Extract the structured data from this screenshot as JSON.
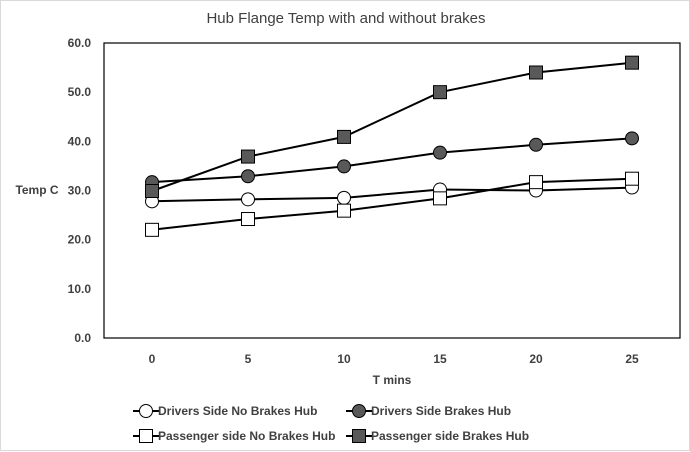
{
  "chart_data": {
    "type": "line",
    "title": "Hub Flange Temp with and without brakes",
    "xlabel": "T mins",
    "ylabel": "Temp C",
    "x": [
      0,
      5,
      10,
      15,
      20,
      25
    ],
    "x_tick_labels": [
      "0",
      "5",
      "10",
      "15",
      "20",
      "25"
    ],
    "ylim": [
      0,
      60
    ],
    "y_ticks": [
      0,
      10,
      20,
      30,
      40,
      50,
      60
    ],
    "y_tick_labels": [
      "0.0",
      "10.0",
      "20.0",
      "30.0",
      "40.0",
      "50.0",
      "60.0"
    ],
    "grid": false,
    "legend_position": "bottom",
    "series": [
      {
        "name": "Drivers Side No Brakes Hub",
        "marker": "circle",
        "fill": "#ffffff",
        "values": [
          27.8,
          28.2,
          28.5,
          30.2,
          30.0,
          30.6
        ]
      },
      {
        "name": "Drivers Side Brakes Hub",
        "marker": "circle",
        "fill": "#595959",
        "values": [
          31.7,
          32.9,
          34.9,
          37.7,
          39.3,
          40.6
        ]
      },
      {
        "name": "Passenger side No Brakes Hub",
        "marker": "square",
        "fill": "#ffffff",
        "values": [
          22.0,
          24.2,
          25.9,
          28.4,
          31.7,
          32.4
        ]
      },
      {
        "name": "Passenger side Brakes Hub",
        "marker": "square",
        "fill": "#595959",
        "values": [
          29.9,
          36.9,
          40.9,
          50.0,
          54.0,
          56.0
        ]
      }
    ]
  }
}
